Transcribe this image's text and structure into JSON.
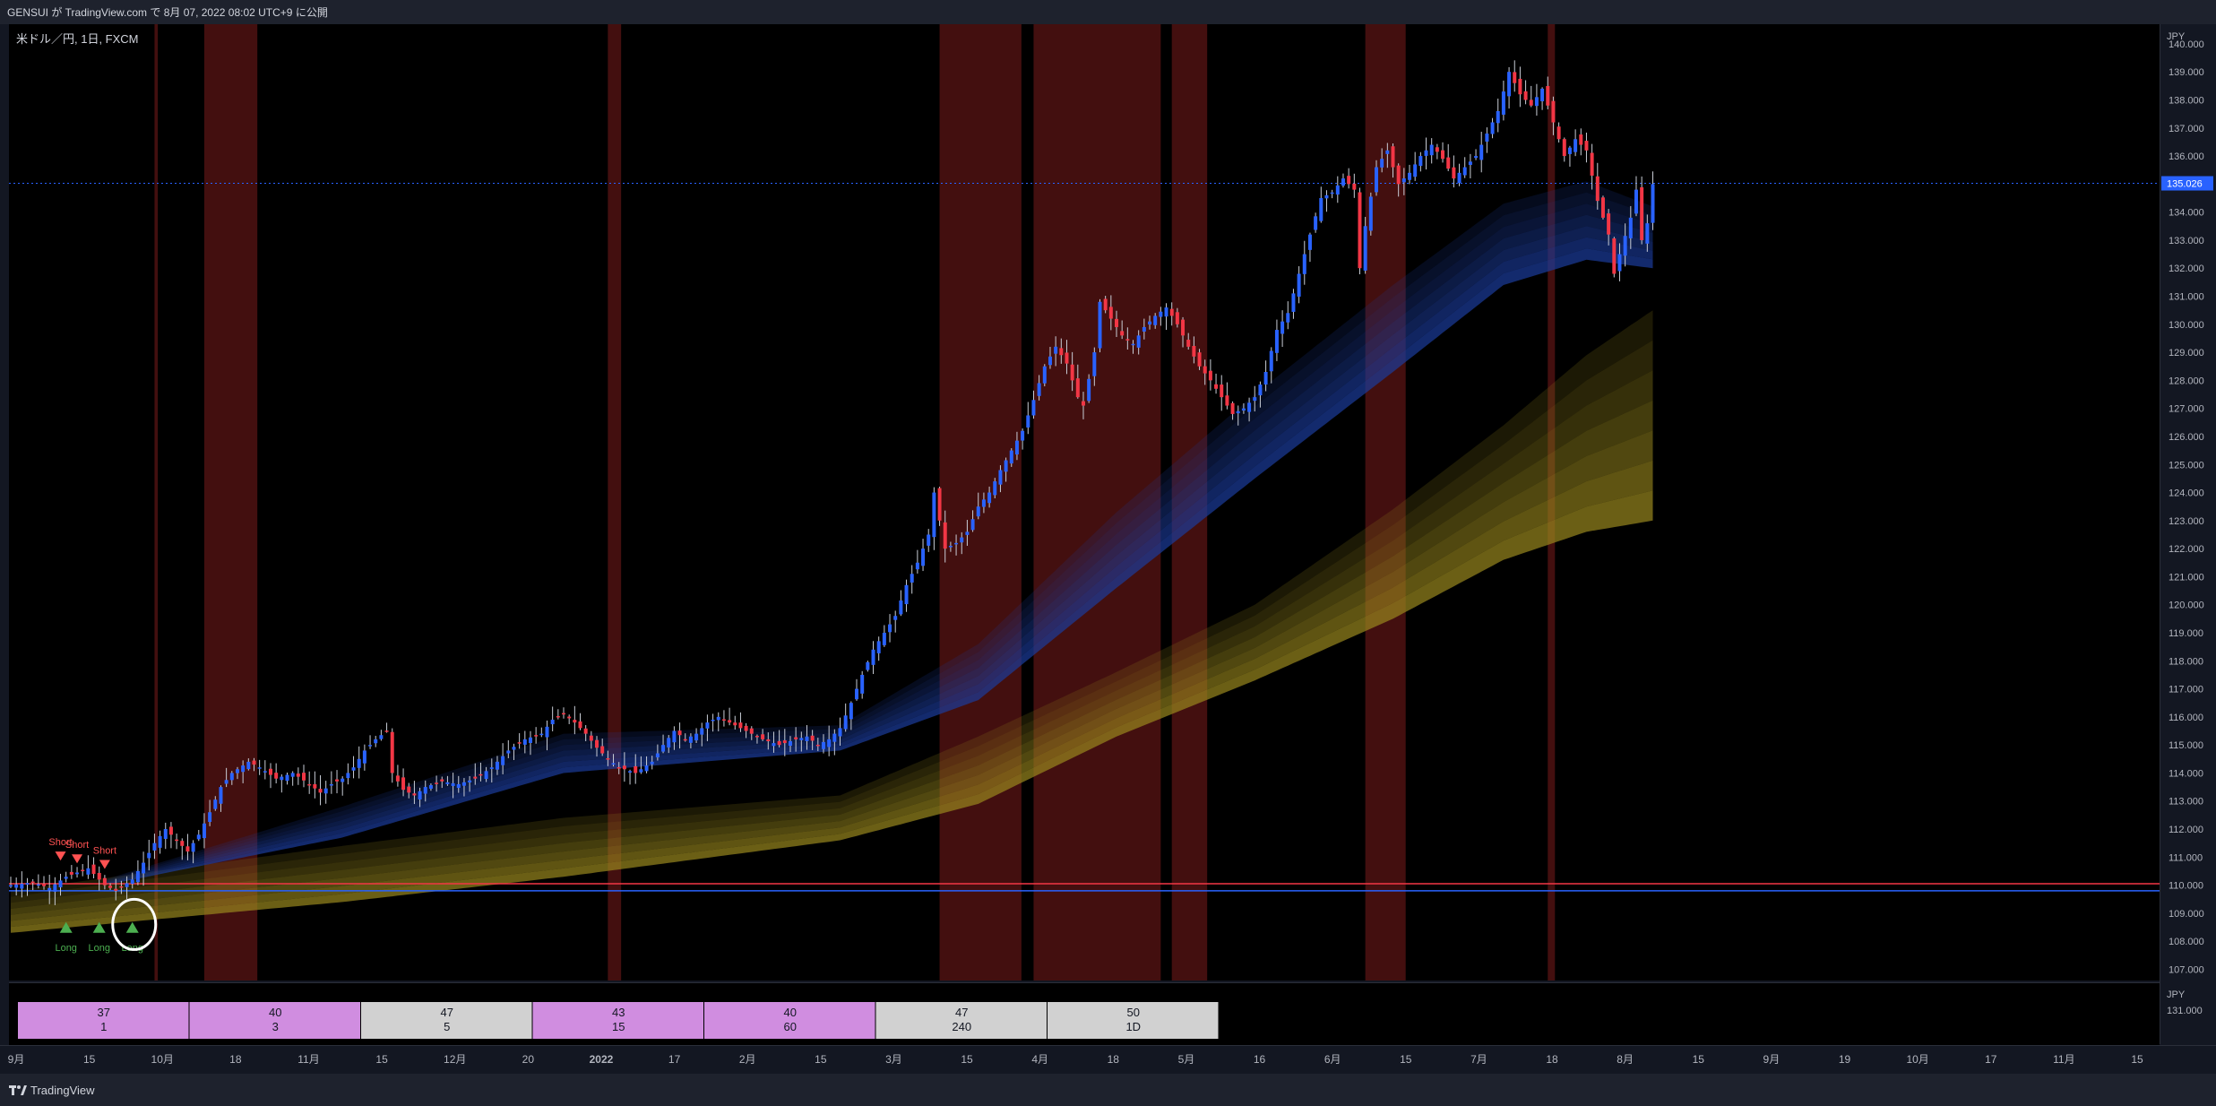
{
  "header": {
    "publish_text": "GENSUI が TradingView.com で 8月 07, 2022 08:02 UTC+9 に公開"
  },
  "symbol": {
    "label": "米ドル／円, 1日, FXCM"
  },
  "footer": {
    "brand": "TradingView"
  },
  "colors": {
    "bull": "#2962ff",
    "bear": "#f23645",
    "band_blue": "#1c3d9e",
    "band_gold": "#9b8a1e",
    "session": "#5a1414",
    "last_price": "#2962ff"
  },
  "chart_data": {
    "type": "candlestick",
    "currency": "JPY",
    "ylim": [
      106.6,
      140.7
    ],
    "y_ticks": [
      107,
      108,
      109,
      110,
      111,
      112,
      113,
      114,
      115,
      116,
      117,
      118,
      119,
      120,
      121,
      122,
      123,
      124,
      125,
      126,
      127,
      128,
      129,
      130,
      131,
      132,
      133,
      134,
      135,
      136,
      137,
      138,
      139,
      140
    ],
    "last_price": "135.026",
    "x_ticks": [
      "9月",
      "15",
      "10月",
      "18",
      "11月",
      "15",
      "12月",
      "20",
      "2022",
      "17",
      "2月",
      "15",
      "3月",
      "15",
      "4月",
      "18",
      "5月",
      "16",
      "6月",
      "15",
      "7月",
      "18",
      "8月",
      "15",
      "9月",
      "19",
      "10月",
      "17",
      "11月",
      "15"
    ],
    "price_path": [
      [
        0,
        110.0
      ],
      [
        4,
        110.1
      ],
      [
        7,
        109.9
      ],
      [
        10,
        110.3
      ],
      [
        14,
        110.6
      ],
      [
        17,
        110.0
      ],
      [
        19,
        109.8
      ],
      [
        22,
        110.2
      ],
      [
        24,
        110.8
      ],
      [
        26,
        111.5
      ],
      [
        28,
        112.0
      ],
      [
        30,
        111.6
      ],
      [
        32,
        111.2
      ],
      [
        34,
        111.8
      ],
      [
        36,
        112.6
      ],
      [
        38,
        113.5
      ],
      [
        40,
        114.0
      ],
      [
        43,
        114.4
      ],
      [
        45,
        114.2
      ],
      [
        48,
        113.8
      ],
      [
        51,
        114.0
      ],
      [
        54,
        113.6
      ],
      [
        56,
        113.3
      ],
      [
        58,
        113.6
      ],
      [
        60,
        113.8
      ],
      [
        62,
        114.2
      ],
      [
        64,
        114.8
      ],
      [
        66,
        115.2
      ],
      [
        68,
        115.5
      ],
      [
        69,
        114.0
      ],
      [
        71,
        113.4
      ],
      [
        73,
        113.2
      ],
      [
        75,
        113.5
      ],
      [
        78,
        113.7
      ],
      [
        81,
        113.6
      ],
      [
        84,
        113.8
      ],
      [
        87,
        114.2
      ],
      [
        90,
        114.8
      ],
      [
        93,
        115.2
      ],
      [
        96,
        115.4
      ],
      [
        98,
        115.9
      ],
      [
        100,
        116.1
      ],
      [
        102,
        115.8
      ],
      [
        104,
        115.4
      ],
      [
        106,
        114.9
      ],
      [
        108,
        114.5
      ],
      [
        110,
        114.2
      ],
      [
        113,
        114.0
      ],
      [
        116,
        114.4
      ],
      [
        118,
        115.0
      ],
      [
        120,
        115.5
      ],
      [
        122,
        115.2
      ],
      [
        124,
        115.4
      ],
      [
        126,
        115.8
      ],
      [
        128,
        116.0
      ],
      [
        130,
        115.8
      ],
      [
        133,
        115.5
      ],
      [
        136,
        115.2
      ],
      [
        139,
        115.0
      ],
      [
        142,
        115.2
      ],
      [
        144,
        115.3
      ],
      [
        146,
        115.0
      ],
      [
        148,
        115.2
      ],
      [
        150,
        115.6
      ],
      [
        152,
        116.5
      ],
      [
        154,
        117.5
      ],
      [
        156,
        118.4
      ],
      [
        158,
        119.0
      ],
      [
        160,
        119.6
      ],
      [
        162,
        120.7
      ],
      [
        164,
        121.5
      ],
      [
        166,
        122.5
      ],
      [
        167,
        124.0
      ],
      [
        168,
        123.0
      ],
      [
        169,
        122.0
      ],
      [
        171,
        122.2
      ],
      [
        173,
        122.6
      ],
      [
        175,
        123.5
      ],
      [
        177,
        124.0
      ],
      [
        179,
        124.8
      ],
      [
        181,
        125.5
      ],
      [
        183,
        126.2
      ],
      [
        185,
        127.3
      ],
      [
        187,
        128.5
      ],
      [
        189,
        129.2
      ],
      [
        191,
        128.6
      ],
      [
        193,
        127.4
      ],
      [
        194,
        127.1
      ],
      [
        196,
        129.0
      ],
      [
        197,
        130.8
      ],
      [
        199,
        130.2
      ],
      [
        201,
        129.6
      ],
      [
        203,
        129.3
      ],
      [
        205,
        129.9
      ],
      [
        207,
        130.3
      ],
      [
        209,
        130.6
      ],
      [
        211,
        130.0
      ],
      [
        213,
        129.2
      ],
      [
        215,
        128.5
      ],
      [
        217,
        128.0
      ],
      [
        219,
        127.4
      ],
      [
        221,
        126.8
      ],
      [
        223,
        127.0
      ],
      [
        225,
        127.4
      ],
      [
        227,
        128.3
      ],
      [
        229,
        129.8
      ],
      [
        231,
        130.4
      ],
      [
        233,
        131.8
      ],
      [
        235,
        133.2
      ],
      [
        237,
        134.5
      ],
      [
        239,
        134.7
      ],
      [
        241,
        135.2
      ],
      [
        243,
        134.8
      ],
      [
        244,
        132.0
      ],
      [
        245,
        133.5
      ],
      [
        247,
        135.6
      ],
      [
        249,
        136.2
      ],
      [
        251,
        135.0
      ],
      [
        253,
        135.4
      ],
      [
        255,
        136.0
      ],
      [
        257,
        136.4
      ],
      [
        259,
        135.9
      ],
      [
        261,
        135.2
      ],
      [
        263,
        135.6
      ],
      [
        265,
        136.0
      ],
      [
        267,
        136.8
      ],
      [
        269,
        137.6
      ],
      [
        271,
        139.0
      ],
      [
        273,
        138.2
      ],
      [
        275,
        137.8
      ],
      [
        277,
        138.4
      ],
      [
        279,
        137.2
      ],
      [
        281,
        136.0
      ],
      [
        283,
        136.6
      ],
      [
        285,
        136.2
      ],
      [
        287,
        134.4
      ],
      [
        289,
        133.2
      ],
      [
        290,
        131.8
      ],
      [
        291,
        132.5
      ],
      [
        293,
        133.8
      ],
      [
        294,
        134.8
      ],
      [
        295,
        133.0
      ],
      [
        296,
        133.6
      ],
      [
        297,
        135.0
      ]
    ],
    "blue_band": {
      "top": [
        [
          17,
          110.2
        ],
        [
          60,
          112.8
        ],
        [
          100,
          115.4
        ],
        [
          150,
          115.7
        ],
        [
          175,
          118.6
        ],
        [
          200,
          123.3
        ],
        [
          225,
          127.5
        ],
        [
          250,
          131.4
        ],
        [
          270,
          134.3
        ],
        [
          285,
          135.1
        ],
        [
          297,
          134.2
        ]
      ],
      "bottom": [
        [
          17,
          110.0
        ],
        [
          60,
          111.7
        ],
        [
          100,
          114.0
        ],
        [
          150,
          114.8
        ],
        [
          175,
          116.6
        ],
        [
          200,
          120.6
        ],
        [
          225,
          124.5
        ],
        [
          250,
          128.3
        ],
        [
          270,
          131.4
        ],
        [
          285,
          132.3
        ],
        [
          297,
          132.0
        ]
      ]
    },
    "gold_band": {
      "top": [
        [
          0,
          109.8
        ],
        [
          60,
          111.4
        ],
        [
          100,
          112.4
        ],
        [
          150,
          113.2
        ],
        [
          175,
          115.3
        ],
        [
          200,
          117.6
        ],
        [
          225,
          120.0
        ],
        [
          250,
          123.4
        ],
        [
          270,
          126.4
        ],
        [
          285,
          128.9
        ],
        [
          297,
          130.5
        ]
      ],
      "bottom": [
        [
          0,
          108.3
        ],
        [
          60,
          109.4
        ],
        [
          100,
          110.3
        ],
        [
          150,
          111.6
        ],
        [
          175,
          112.9
        ],
        [
          200,
          115.3
        ],
        [
          225,
          117.3
        ],
        [
          250,
          119.5
        ],
        [
          270,
          121.6
        ],
        [
          285,
          122.6
        ],
        [
          297,
          123.0
        ]
      ]
    },
    "levels": [
      {
        "price": 110.05,
        "color": "#f23645"
      },
      {
        "price": 109.8,
        "color": "#2962ff"
      }
    ],
    "sessions": [
      [
        26,
        26.6
      ],
      [
        35,
        44.6
      ],
      [
        108,
        110.4
      ],
      [
        168,
        182.8
      ],
      [
        185,
        208
      ],
      [
        210,
        216.4
      ],
      [
        245,
        252.3
      ],
      [
        278,
        279.3
      ]
    ],
    "signals": [
      {
        "label": "Short",
        "x": 9,
        "y": 111.2,
        "dir": "down"
      },
      {
        "label": "Short",
        "x": 12,
        "y": 111.1,
        "dir": "down"
      },
      {
        "label": "Short",
        "x": 17,
        "y": 110.9,
        "dir": "down"
      },
      {
        "label": "Long",
        "x": 10,
        "y": 108.3,
        "dir": "up"
      },
      {
        "label": "Long",
        "x": 16,
        "y": 108.3,
        "dir": "up"
      },
      {
        "label": "Long",
        "x": 22,
        "y": 108.3,
        "dir": "up"
      }
    ],
    "panel_table": [
      {
        "top": "37",
        "bottom": "1",
        "color": "#d08de0"
      },
      {
        "top": "40",
        "bottom": "3",
        "color": "#d08de0"
      },
      {
        "top": "47",
        "bottom": "5",
        "color": "#d1d1d1"
      },
      {
        "top": "43",
        "bottom": "15",
        "color": "#d08de0"
      },
      {
        "top": "40",
        "bottom": "60",
        "color": "#d08de0"
      },
      {
        "top": "47",
        "bottom": "240",
        "color": "#d1d1d1"
      },
      {
        "top": "50",
        "bottom": "1D",
        "color": "#d1d1d1"
      }
    ],
    "osc_axis": {
      "currency": "JPY",
      "tick": "131.000"
    }
  }
}
